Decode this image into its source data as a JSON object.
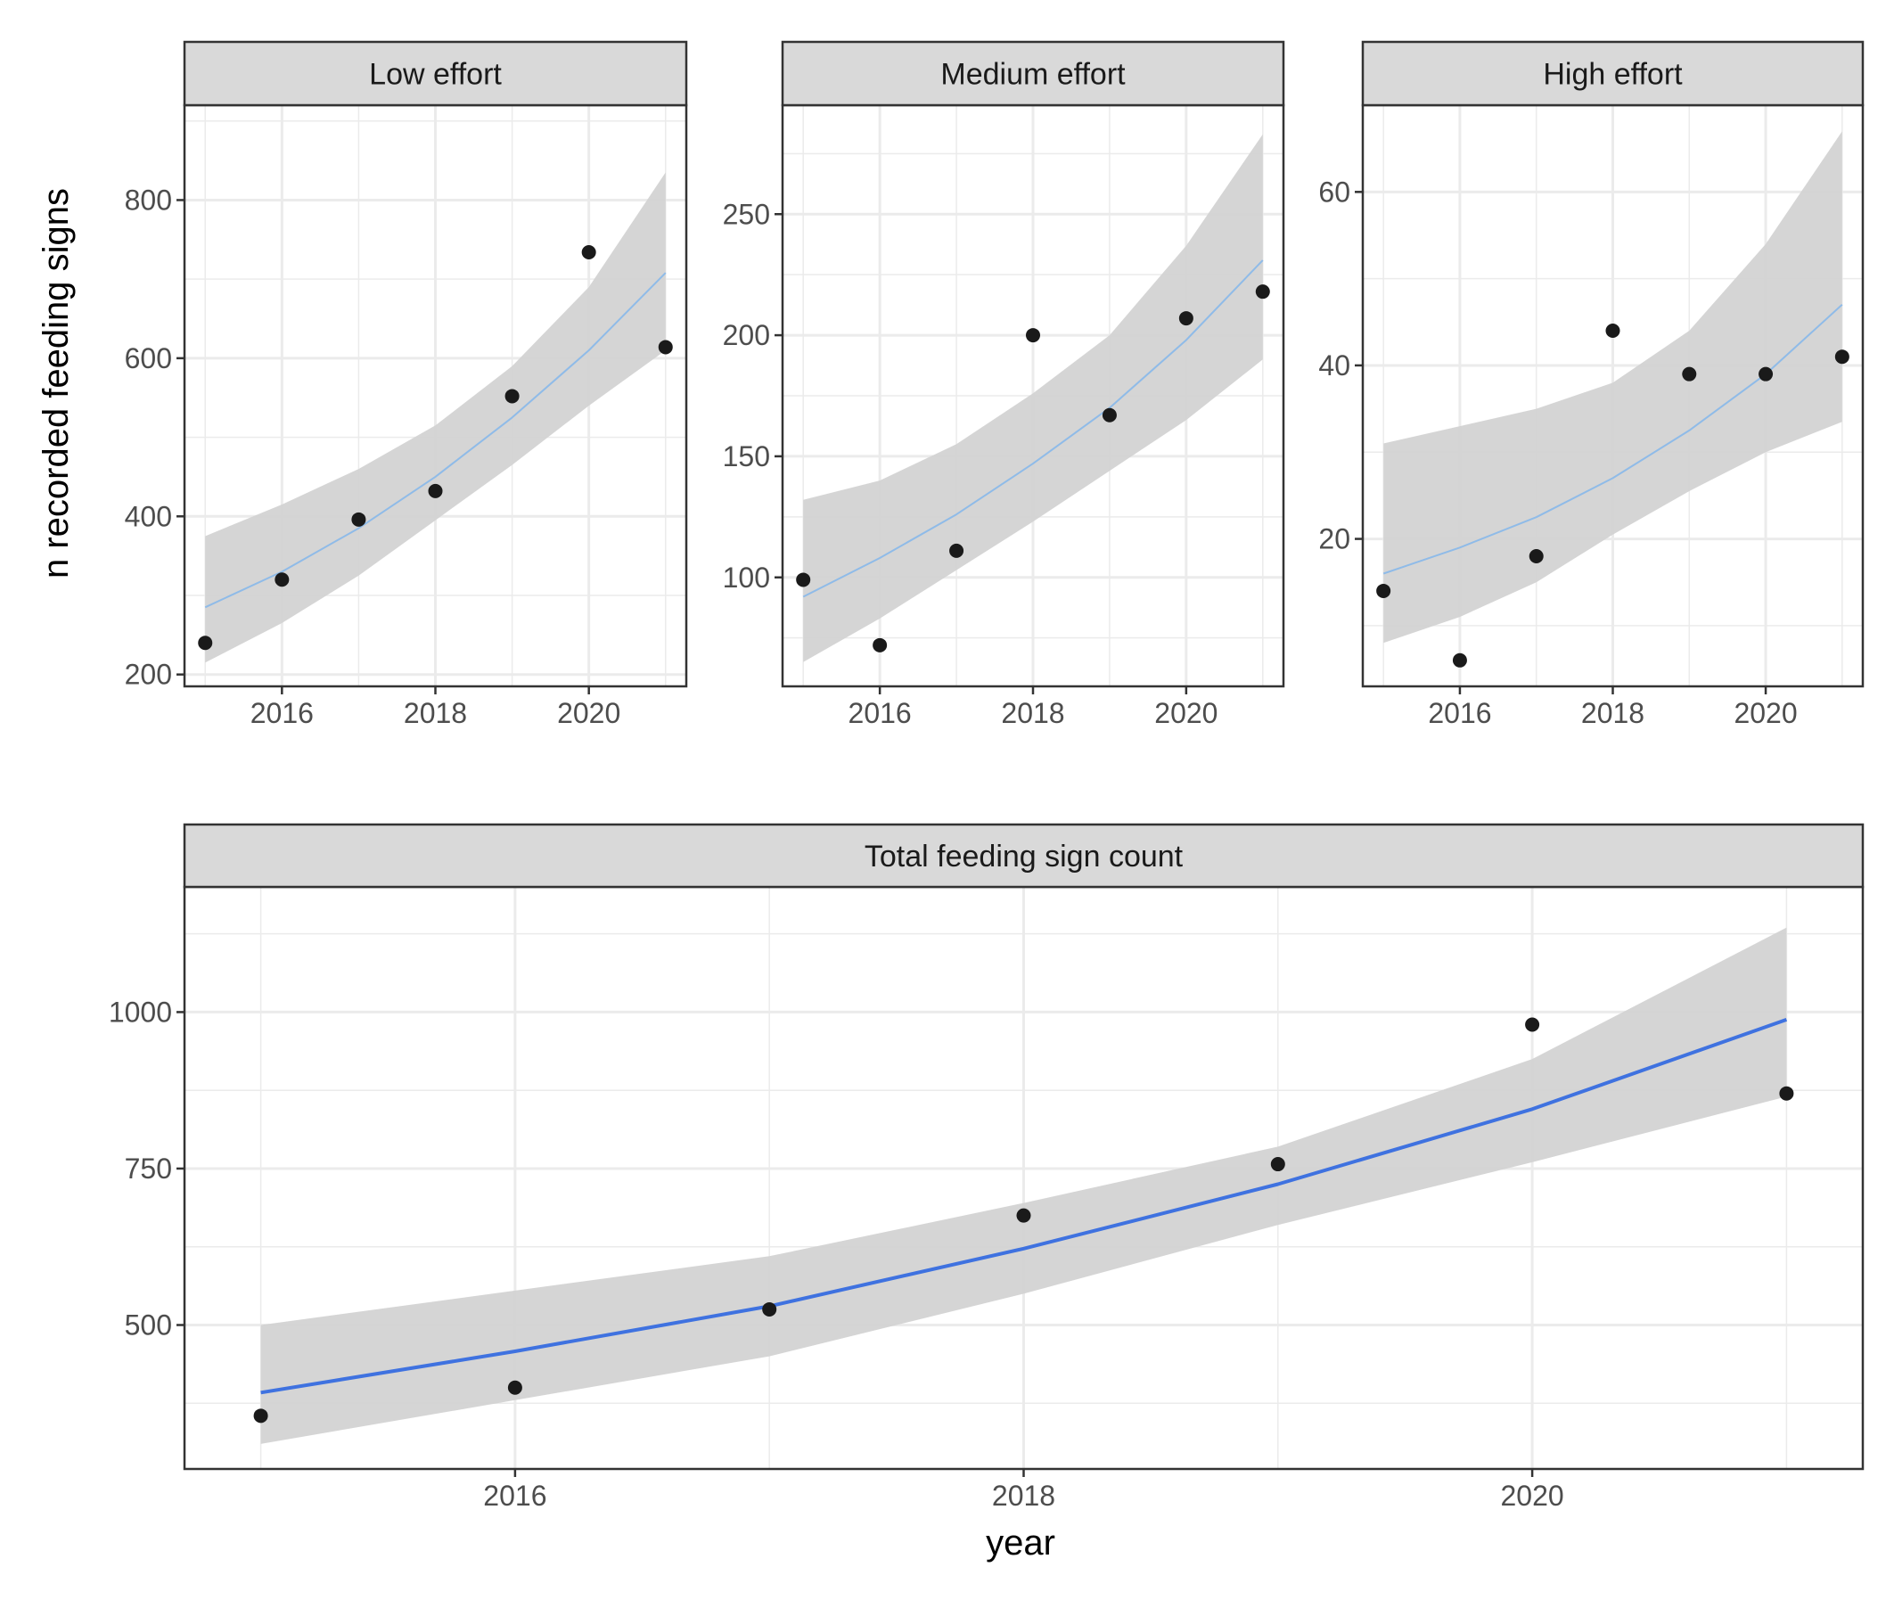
{
  "figure": {
    "ylabel": "n recorded feeding signs",
    "xlabel": "year"
  },
  "chart_data": [
    {
      "type": "scatter",
      "panel": "Low effort",
      "title": "Low effort",
      "x": [
        2015,
        2016,
        2017,
        2018,
        2019,
        2020,
        2021
      ],
      "y": [
        240,
        320,
        396,
        432,
        552,
        734,
        614
      ],
      "fit": [
        285,
        330,
        385,
        450,
        525,
        610,
        708
      ],
      "fit_lower": [
        215,
        265,
        325,
        395,
        465,
        540,
        610
      ],
      "fit_upper": [
        375,
        415,
        460,
        515,
        590,
        690,
        835
      ],
      "xlim": [
        2014.73,
        2021.27
      ],
      "ylim": [
        185,
        920
      ],
      "xticks": [
        "2016",
        "2018",
        "2020"
      ],
      "yticks": [
        "200",
        "400",
        "600",
        "800"
      ],
      "fit_color": "#8fbbe8"
    },
    {
      "type": "scatter",
      "panel": "Medium effort",
      "title": "Medium effort",
      "x": [
        2015,
        2016,
        2017,
        2018,
        2019,
        2020,
        2021
      ],
      "y": [
        99,
        72,
        111,
        200,
        167,
        207,
        218
      ],
      "fit": [
        92,
        108,
        126,
        147,
        170,
        198,
        231
      ],
      "fit_lower": [
        65,
        83,
        103,
        123,
        144,
        165,
        190
      ],
      "fit_upper": [
        132,
        140,
        155,
        176,
        200,
        237,
        283
      ],
      "xlim": [
        2014.73,
        2021.27
      ],
      "ylim": [
        55,
        295
      ],
      "xticks": [
        "2016",
        "2018",
        "2020"
      ],
      "yticks": [
        "100",
        "150",
        "200",
        "250"
      ],
      "fit_color": "#8fbbe8"
    },
    {
      "type": "scatter",
      "panel": "High effort",
      "title": "High effort",
      "x": [
        2015,
        2016,
        2017,
        2018,
        2019,
        2020,
        2021
      ],
      "y": [
        14,
        6,
        18,
        44,
        39,
        39,
        41
      ],
      "fit": [
        16,
        19,
        22.5,
        27,
        32.5,
        39,
        47
      ],
      "fit_lower": [
        8,
        11,
        15,
        20.5,
        25.5,
        30,
        33.5
      ],
      "fit_upper": [
        31,
        33,
        35,
        38,
        44,
        54,
        67
      ],
      "xlim": [
        2014.73,
        2021.27
      ],
      "ylim": [
        3,
        70
      ],
      "xticks": [
        "2016",
        "2018",
        "2020"
      ],
      "yticks": [
        "20",
        "40",
        "60"
      ],
      "fit_color": "#8fbbe8"
    },
    {
      "type": "scatter",
      "panel": "Total feeding sign count",
      "title": "Total feeding sign count",
      "x": [
        2015,
        2016,
        2017,
        2018,
        2019,
        2020,
        2021
      ],
      "y": [
        355,
        400,
        525,
        675,
        757,
        980,
        870
      ],
      "fit": [
        392,
        458,
        530,
        622,
        725,
        845,
        988
      ],
      "fit_lower": [
        310,
        380,
        450,
        550,
        660,
        760,
        865
      ],
      "fit_upper": [
        500,
        555,
        610,
        695,
        785,
        925,
        1135
      ],
      "xlim": [
        2014.7,
        2021.3
      ],
      "ylim": [
        270,
        1200
      ],
      "xticks": [
        "2016",
        "2018",
        "2020"
      ],
      "yticks": [
        "500",
        "750",
        "1000"
      ],
      "fit_color": "#3f72e0"
    }
  ],
  "colors": {
    "ribbon": "#d3d3d3",
    "point": "#1a1a1a",
    "grid": "#ebebeb",
    "strip": "#d9d9d9"
  }
}
